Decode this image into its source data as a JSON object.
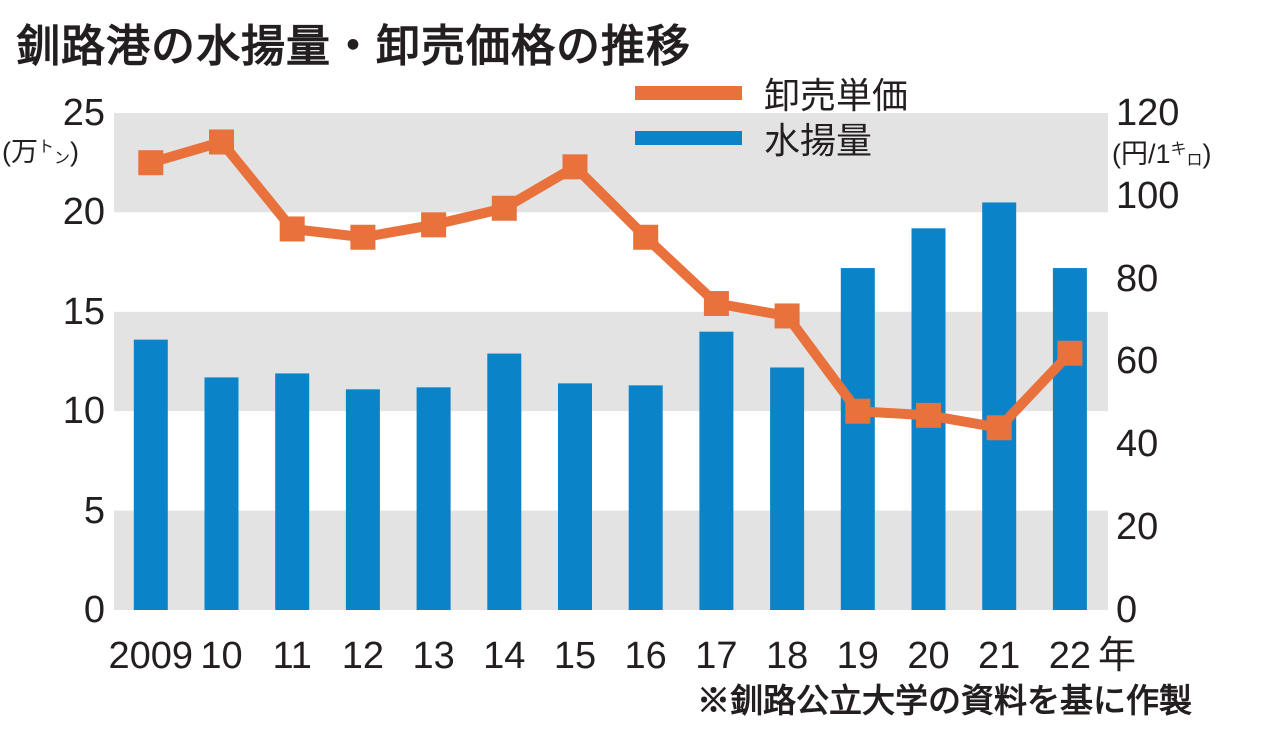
{
  "title": "釧路港の水揚量・卸売価格の推移",
  "source_note": "※釧路公立大学の資料を基に作製",
  "legend": {
    "items": [
      {
        "label": "卸売単価",
        "color": "#e8713c",
        "type": "line"
      },
      {
        "label": "水揚量",
        "color": "#0b83c9",
        "type": "bar"
      }
    ]
  },
  "left_axis": {
    "ticks": [
      "25",
      "20",
      "15",
      "10",
      "5",
      "0"
    ],
    "unit_prefix": "(万",
    "unit_kana_top": "ト",
    "unit_kana_bottom": "ン",
    "unit_suffix": ")"
  },
  "right_axis": {
    "ticks": [
      "120",
      "100",
      "80",
      "60",
      "40",
      "20",
      "0"
    ],
    "unit_prefix": "(円/1",
    "unit_kana_top": "キ",
    "unit_kana_bottom": "ロ",
    "unit_suffix": ")"
  },
  "x_axis": {
    "labels": [
      "2009",
      "10",
      "11",
      "12",
      "13",
      "14",
      "15",
      "16",
      "17",
      "18",
      "19",
      "20",
      "21",
      "22"
    ],
    "suffix": "年"
  },
  "chart_data": {
    "type": "bar+line",
    "title": "釧路港の水揚量・卸売価格の推移",
    "categories": [
      2009,
      2010,
      2011,
      2012,
      2013,
      2014,
      2015,
      2016,
      2017,
      2018,
      2019,
      2020,
      2021,
      2022
    ],
    "series": [
      {
        "name": "水揚量",
        "type": "bar",
        "axis": "left",
        "unit": "万トン",
        "color": "#0b83c9",
        "values": [
          13.6,
          11.7,
          11.9,
          11.1,
          11.2,
          12.9,
          11.4,
          11.3,
          14.0,
          12.2,
          17.2,
          19.2,
          20.5,
          17.2
        ]
      },
      {
        "name": "卸売単価",
        "type": "line",
        "axis": "right",
        "unit": "円/1kg",
        "color": "#e8713c",
        "marker": "square",
        "values": [
          108,
          113,
          92,
          90,
          93,
          97,
          107,
          90,
          74,
          71,
          48,
          47,
          44,
          62
        ]
      }
    ],
    "left_axis_range": [
      0,
      25
    ],
    "right_axis_range": [
      0,
      120
    ],
    "grid": "alternating-horizontal-bands",
    "band_color": "#e3e3e3",
    "legend_position": "top-center"
  }
}
